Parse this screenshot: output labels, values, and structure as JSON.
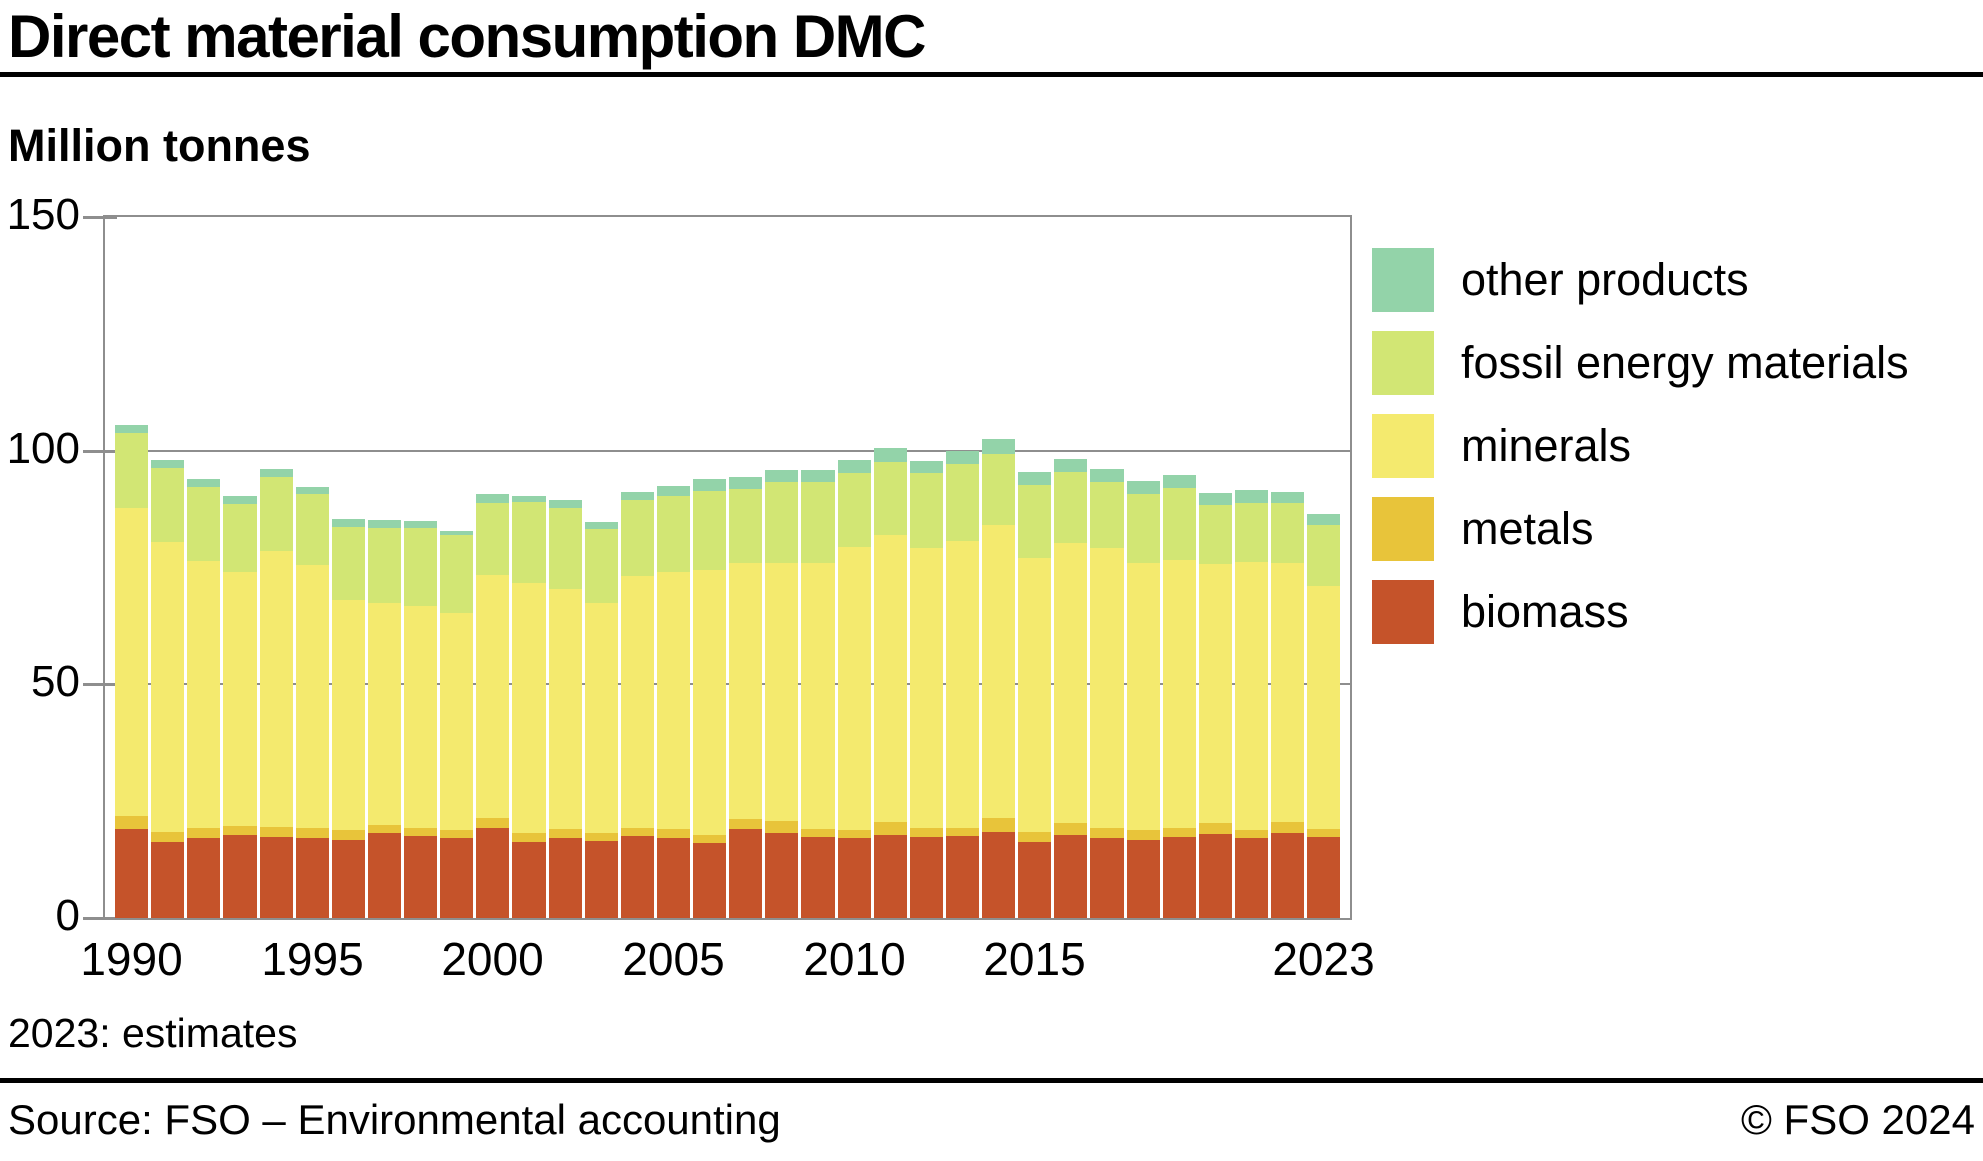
{
  "header": {
    "title": "Direct material consumption DMC",
    "unit_label": "Million tonnes"
  },
  "chart_data": {
    "type": "bar",
    "stacked": true,
    "title": "Direct material consumption DMC",
    "ylabel": "Million tonnes",
    "xlabel": "",
    "ylim": [
      0,
      150
    ],
    "yticks": [
      150,
      100,
      50,
      0
    ],
    "grid": {
      "solid_line_at": 100,
      "dotted_line_at": 50,
      "gridlines_behind_bars": true
    },
    "legend_position": "right",
    "x_tick_years": [
      1990,
      1995,
      2000,
      2005,
      2010,
      2015,
      2023
    ],
    "years": [
      1990,
      1991,
      1992,
      1993,
      1994,
      1995,
      1996,
      1997,
      1998,
      1999,
      2000,
      2001,
      2002,
      2003,
      2004,
      2005,
      2006,
      2007,
      2008,
      2009,
      2010,
      2011,
      2012,
      2013,
      2014,
      2015,
      2016,
      2017,
      2018,
      2019,
      2020,
      2021,
      2022,
      2023
    ],
    "stack_order_bottom_to_top": [
      "biomass",
      "metals",
      "minerals",
      "fossil energy materials",
      "other products"
    ],
    "series": [
      {
        "name": "biomass",
        "color": "#C5532A",
        "values": [
          19.0,
          16.3,
          17.1,
          17.7,
          17.3,
          17.1,
          16.8,
          18.3,
          17.5,
          17.1,
          19.3,
          16.3,
          17.1,
          16.5,
          17.5,
          17.1,
          16.1,
          19.0,
          18.3,
          17.3,
          17.1,
          17.8,
          17.3,
          17.5,
          18.5,
          16.3,
          17.8,
          17.1,
          16.8,
          17.3,
          18.0,
          17.1,
          18.3,
          17.3
        ]
      },
      {
        "name": "metals",
        "color": "#E8C43A",
        "values": [
          2.8,
          2.2,
          2.2,
          2.1,
          2.2,
          2.2,
          2.0,
          1.7,
          1.8,
          1.7,
          2.2,
          2.0,
          2.0,
          1.8,
          1.8,
          2.0,
          1.7,
          2.3,
          2.5,
          1.8,
          1.7,
          2.7,
          2.0,
          1.8,
          2.8,
          2.2,
          2.5,
          2.2,
          2.0,
          2.0,
          2.3,
          1.7,
          2.2,
          1.8
        ]
      },
      {
        "name": "minerals",
        "color": "#F4EA6E",
        "values": [
          66.0,
          62.0,
          57.0,
          54.3,
          59.1,
          56.2,
          49.2,
          47.4,
          47.4,
          46.4,
          51.8,
          53.4,
          51.4,
          49.1,
          53.9,
          54.9,
          56.7,
          54.7,
          55.2,
          56.9,
          60.6,
          61.4,
          59.8,
          61.3,
          62.8,
          58.6,
          60.0,
          59.8,
          57.2,
          57.3,
          55.5,
          57.4,
          55.5,
          51.9
        ]
      },
      {
        "name": "fossil energy materials",
        "color": "#D2E674",
        "values": [
          16.0,
          15.7,
          16.0,
          14.6,
          15.7,
          15.2,
          15.7,
          16.0,
          16.7,
          16.7,
          15.6,
          17.4,
          17.2,
          15.8,
          16.2,
          16.4,
          16.9,
          15.8,
          17.3,
          17.3,
          15.9,
          15.7,
          16.2,
          16.5,
          15.2,
          15.6,
          15.2,
          14.2,
          14.7,
          15.5,
          12.6,
          12.7,
          12.7,
          13.1
        ]
      },
      {
        "name": "other products",
        "color": "#93D3A9",
        "values": [
          1.7,
          1.8,
          1.7,
          1.7,
          1.7,
          1.6,
          1.6,
          1.8,
          1.5,
          1.0,
          1.8,
          1.3,
          1.8,
          1.5,
          1.8,
          2.0,
          2.5,
          2.5,
          2.5,
          2.5,
          2.8,
          3.0,
          2.5,
          2.9,
          3.1,
          2.8,
          2.8,
          2.8,
          2.8,
          2.7,
          2.6,
          2.6,
          2.5,
          2.3
        ]
      }
    ],
    "legend_labels_top_to_bottom": [
      "other products",
      "fossil energy materials",
      "minerals",
      "metals",
      "biomass"
    ]
  },
  "annotations": {
    "estimate_note": "2023: estimates"
  },
  "footer": {
    "source": "Source: FSO – Environmental accounting",
    "copyright": "© FSO 2024"
  },
  "colors": {
    "axis_gray": "#8E8E8E",
    "rule_black": "#000000",
    "background": "#FFFFFF"
  }
}
